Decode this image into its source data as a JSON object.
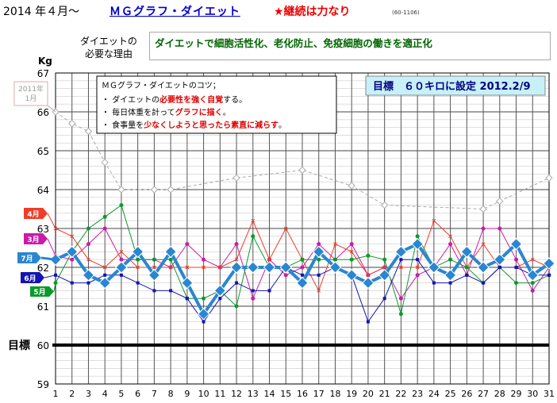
{
  "header": {
    "year_month": "2014 年４月～",
    "title": "ＭＧグラフ・ダイエット",
    "slogan": "★継続は力なり",
    "code": "(60-1106)"
  },
  "reason": {
    "label_line1": "ダイエットの",
    "label_line2": "必要な理由",
    "text": "ダイエットで細胞活性化、老化防止、免疫細胞の働きを適正化"
  },
  "tips": {
    "title": "ＭＧグラフ・ダイエットのコツ；",
    "line1_pre": "・ ダイエットの",
    "line1_red": "必要性を強く自覚",
    "line1_post": "する。",
    "line2_pre": "・ 毎日体重を計って",
    "line2_red": "グラフに描く",
    "line2_post": "。",
    "line3_pre": "・ 食事量を",
    "line3_red": "少なくしようと思ったら素直に減らす",
    "line3_post": "。"
  },
  "target_box": "目標　６０キロに設定 2012.2/9",
  "target_label": "目標",
  "colors": {
    "jul": "#2a86d0",
    "jun": "#1414b4",
    "may": "#0a9a2a",
    "apr": "#f03c28",
    "mar": "#cc1aa8",
    "y2011": "#aaaaaa",
    "grid": "#000000",
    "target_line": "#000000"
  },
  "chart_data": {
    "type": "line",
    "ylabel": "Kg",
    "ylim": [
      59,
      67
    ],
    "yticks": [
      59,
      60,
      61,
      62,
      63,
      64,
      65,
      66,
      67
    ],
    "x": [
      1,
      2,
      3,
      4,
      5,
      6,
      7,
      8,
      9,
      10,
      11,
      12,
      13,
      14,
      15,
      16,
      17,
      18,
      19,
      20,
      21,
      22,
      23,
      24,
      25,
      26,
      27,
      28,
      29,
      30,
      31
    ],
    "target": 60,
    "series": [
      {
        "name": "7月",
        "key": "jul",
        "values": [
          62.2,
          62.4,
          61.8,
          61.6,
          62.0,
          62.4,
          61.8,
          62.4,
          61.6,
          60.8,
          61.4,
          62.0,
          62.0,
          62.0,
          62.0,
          61.6,
          62.4,
          62.0,
          61.8,
          61.6,
          61.8,
          62.4,
          62.6,
          62.0,
          61.8,
          62.4,
          62.0,
          62.2,
          62.6,
          61.8,
          62.1
        ]
      },
      {
        "name": "6月",
        "key": "jun",
        "values": [
          61.8,
          61.6,
          61.6,
          61.8,
          61.8,
          61.6,
          61.4,
          61.4,
          61.2,
          60.6,
          61.2,
          61.6,
          61.4,
          61.4,
          62.0,
          61.8,
          61.8,
          62.0,
          61.8,
          60.6,
          61.2,
          62.2,
          62.2,
          61.6,
          61.6,
          61.8,
          61.6,
          62.0,
          62.0,
          61.8,
          61.8
        ]
      },
      {
        "name": "5月",
        "key": "may",
        "values": [
          61.6,
          62.4,
          63.0,
          63.3,
          63.6,
          62.2,
          62.2,
          62.2,
          61.2,
          61.2,
          61.4,
          61.0,
          62.8,
          62.0,
          62.0,
          62.2,
          62.2,
          62.2,
          62.2,
          62.3,
          62.2,
          60.8,
          62.8,
          62.0,
          62.2,
          62.0,
          61.6,
          62.0,
          61.6,
          61.6,
          61.8
        ]
      },
      {
        "name": "4月",
        "key": "apr",
        "values": [
          63.0,
          62.8,
          62.2,
          62.0,
          62.4,
          62.0,
          62.0,
          62.0,
          62.0,
          62.0,
          62.0,
          62.2,
          63.2,
          62.2,
          63.0,
          62.2,
          61.4,
          62.6,
          62.4,
          61.8,
          62.0,
          62.0,
          62.0,
          63.2,
          62.8,
          62.0,
          62.6,
          62.0,
          62.0,
          62.2,
          62.0
        ]
      },
      {
        "name": "3月",
        "key": "mar",
        "values": [
          62.3,
          62.2,
          62.6,
          63.0,
          62.2,
          62.2,
          62.2,
          62.0,
          62.6,
          62.2,
          62.0,
          62.6,
          61.2,
          62.2,
          61.8,
          62.0,
          62.6,
          62.2,
          62.6,
          61.8,
          62.0,
          61.2,
          61.8,
          62.0,
          62.6,
          61.8,
          63.0,
          63.0,
          62.2,
          61.4,
          62.0
        ]
      },
      {
        "name": "2011年 1月",
        "key": "y2011",
        "dashed": true,
        "x": [
          1,
          2,
          3,
          4,
          5,
          7,
          8,
          12,
          16,
          19,
          21,
          27,
          28,
          31
        ],
        "values": [
          66.0,
          65.7,
          65.5,
          64.7,
          64.0,
          64.0,
          64.0,
          64.3,
          64.5,
          64.1,
          63.6,
          63.5,
          63.7,
          64.3
        ]
      }
    ]
  }
}
